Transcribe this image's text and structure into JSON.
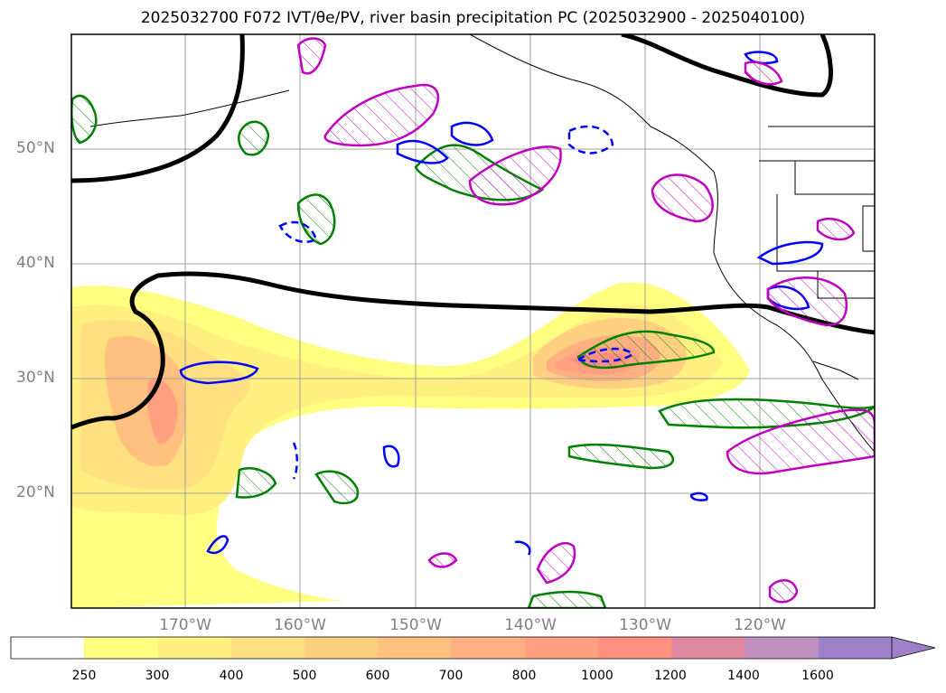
{
  "title": "2025032700 F072 IVT/θe/PV, river basin precipitation PC (2025032900 - 2025040100)",
  "map": {
    "lat_labels": [
      "50°N",
      "40°N",
      "30°N",
      "20°N"
    ],
    "lon_labels": [
      "170°W",
      "160°W",
      "150°W",
      "140°W",
      "130°W",
      "120°W"
    ],
    "lat_range": [
      10,
      60
    ],
    "lon_range": [
      -180,
      -110
    ],
    "gridlines": true,
    "layers": [
      {
        "name": "IVT",
        "style": "filled contours",
        "colors": "yellow-orange-red"
      },
      {
        "name": "theta-e",
        "style": "blue contours"
      },
      {
        "name": "PV",
        "style": "green contours, hatched"
      },
      {
        "name": "precipitation PC",
        "style": "magenta contours, hatched"
      },
      {
        "name": "thick black line",
        "style": "black contour"
      }
    ]
  },
  "colorbar": {
    "levels": [
      "250",
      "300",
      "400",
      "500",
      "600",
      "700",
      "800",
      "1000",
      "1200",
      "1400",
      "1600"
    ],
    "colors": [
      "#ffff80",
      "#fff080",
      "#ffe080",
      "#ffd080",
      "#ffc080",
      "#ffb080",
      "#ffa080",
      "#ff9080",
      "#e088a0",
      "#c090c0",
      "#a080c8"
    ]
  }
}
